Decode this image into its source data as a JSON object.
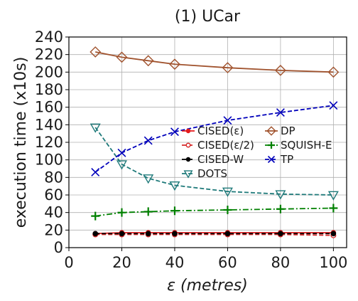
{
  "chart_data": {
    "type": "line",
    "title": "(1) UCar",
    "xlabel_symbol": "ε",
    "xlabel_unit": "(metres)",
    "ylabel": "execution time (x10s)",
    "xlim": [
      0,
      105
    ],
    "ylim": [
      0,
      240
    ],
    "xticks": [
      0,
      20,
      40,
      60,
      80,
      100
    ],
    "yticks": [
      0,
      20,
      40,
      60,
      80,
      100,
      120,
      140,
      160,
      180,
      200,
      220,
      240
    ],
    "grid": true,
    "legend_placement": "center-right",
    "x": [
      10,
      20,
      30,
      40,
      60,
      80,
      100
    ],
    "series": [
      {
        "name": "CISED(ε)",
        "color": "#e41a1c",
        "dash": "solid",
        "marker": "filled-circle",
        "values": [
          16,
          17,
          17,
          17,
          17,
          17,
          17
        ]
      },
      {
        "name": "CISED(ε/2)",
        "color": "#d62728",
        "dash": "dashed",
        "marker": "open-circle",
        "values": [
          15,
          15,
          15,
          15,
          15,
          15,
          14
        ]
      },
      {
        "name": "CISED-W",
        "color": "#000000",
        "dash": "dashed",
        "marker": "filled-circle",
        "values": [
          16,
          16,
          16,
          16,
          16,
          16,
          16
        ]
      },
      {
        "name": "DOTS",
        "color": "#1f7a7a",
        "dash": "dashed",
        "marker": "open-triangle-down",
        "values": [
          137,
          95,
          79,
          71,
          64,
          61,
          60
        ]
      },
      {
        "name": "DP",
        "color": "#a0522d",
        "dash": "solid",
        "marker": "open-diamond",
        "values": [
          223,
          217,
          213,
          209,
          205,
          202,
          200
        ]
      },
      {
        "name": "SQUISH-E",
        "color": "#008000",
        "dash": "dashdot",
        "marker": "plus",
        "values": [
          36,
          40,
          41,
          42,
          43,
          44,
          45
        ]
      },
      {
        "name": "TP",
        "color": "#0000bb",
        "dash": "dashed",
        "marker": "x",
        "values": [
          86,
          108,
          122,
          132,
          145,
          154,
          162
        ]
      }
    ]
  }
}
